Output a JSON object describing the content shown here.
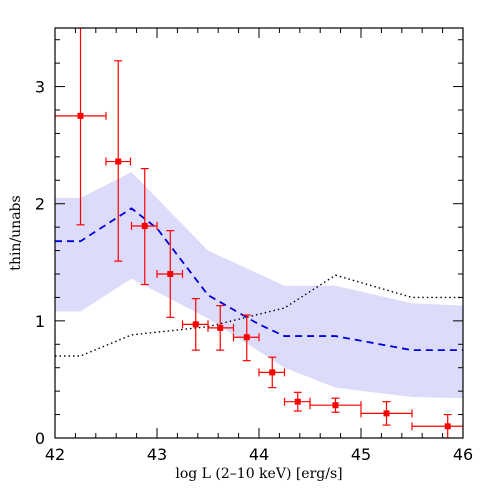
{
  "chart_data": {
    "type": "scatter",
    "title": "",
    "xlabel": "log L (2–10 keV) [erg/s]",
    "ylabel": "thin/unabs",
    "xlim": [
      42,
      46
    ],
    "ylim": [
      0,
      3.5
    ],
    "xticks": [
      42,
      43,
      44,
      45,
      46
    ],
    "yticks": [
      0,
      1,
      2,
      3
    ],
    "grid": false,
    "colors": {
      "points": "#ff0000",
      "dashed": "#0000dd",
      "band": "#dcdcfa",
      "dotted": "#000000"
    },
    "band": {
      "x": [
        42.0,
        42.25,
        42.75,
        43.5,
        44.25,
        44.75,
        45.5,
        46.0
      ],
      "upper": [
        2.05,
        2.05,
        2.27,
        1.6,
        1.3,
        1.3,
        1.15,
        1.13
      ],
      "lower": [
        1.08,
        1.08,
        1.36,
        1.02,
        0.6,
        0.43,
        0.35,
        0.34
      ]
    },
    "dashed_line": {
      "x": [
        42.0,
        42.25,
        42.75,
        43.0,
        43.5,
        44.0,
        44.25,
        44.75,
        45.5,
        46.0
      ],
      "y": [
        1.68,
        1.68,
        1.96,
        1.79,
        1.22,
        0.97,
        0.87,
        0.87,
        0.75,
        0.75
      ]
    },
    "dotted_line": {
      "x": [
        42.0,
        42.25,
        42.75,
        43.5,
        44.25,
        44.75,
        45.5,
        46.0
      ],
      "y": [
        0.7,
        0.7,
        0.88,
        0.95,
        1.11,
        1.39,
        1.2,
        1.2
      ]
    },
    "points": [
      {
        "x": 42.25,
        "y": 2.75,
        "xerr": [
          0.25,
          0.25
        ],
        "yerr": [
          0.93,
          0.75
        ]
      },
      {
        "x": 42.62,
        "y": 2.36,
        "xerr": [
          0.12,
          0.12
        ],
        "yerr": [
          0.85,
          0.86
        ]
      },
      {
        "x": 42.88,
        "y": 1.81,
        "xerr": [
          0.13,
          0.12
        ],
        "yerr": [
          0.5,
          0.49
        ]
      },
      {
        "x": 43.13,
        "y": 1.4,
        "xerr": [
          0.13,
          0.12
        ],
        "yerr": [
          0.37,
          0.37
        ]
      },
      {
        "x": 43.38,
        "y": 0.97,
        "xerr": [
          0.13,
          0.12
        ],
        "yerr": [
          0.22,
          0.22
        ]
      },
      {
        "x": 43.62,
        "y": 0.94,
        "xerr": [
          0.12,
          0.13
        ],
        "yerr": [
          0.19,
          0.19
        ]
      },
      {
        "x": 43.88,
        "y": 0.86,
        "xerr": [
          0.13,
          0.12
        ],
        "yerr": [
          0.2,
          0.19
        ]
      },
      {
        "x": 44.13,
        "y": 0.56,
        "xerr": [
          0.13,
          0.12
        ],
        "yerr": [
          0.13,
          0.13
        ]
      },
      {
        "x": 44.38,
        "y": 0.31,
        "xerr": [
          0.13,
          0.12
        ],
        "yerr": [
          0.08,
          0.08
        ]
      },
      {
        "x": 44.75,
        "y": 0.28,
        "xerr": [
          0.25,
          0.25
        ],
        "yerr": [
          0.06,
          0.06
        ]
      },
      {
        "x": 45.25,
        "y": 0.21,
        "xerr": [
          0.25,
          0.25
        ],
        "yerr": [
          0.1,
          0.1
        ]
      },
      {
        "x": 45.85,
        "y": 0.1,
        "xerr": [
          0.35,
          0.15
        ],
        "yerr": [
          0.1,
          0.1
        ]
      }
    ]
  }
}
